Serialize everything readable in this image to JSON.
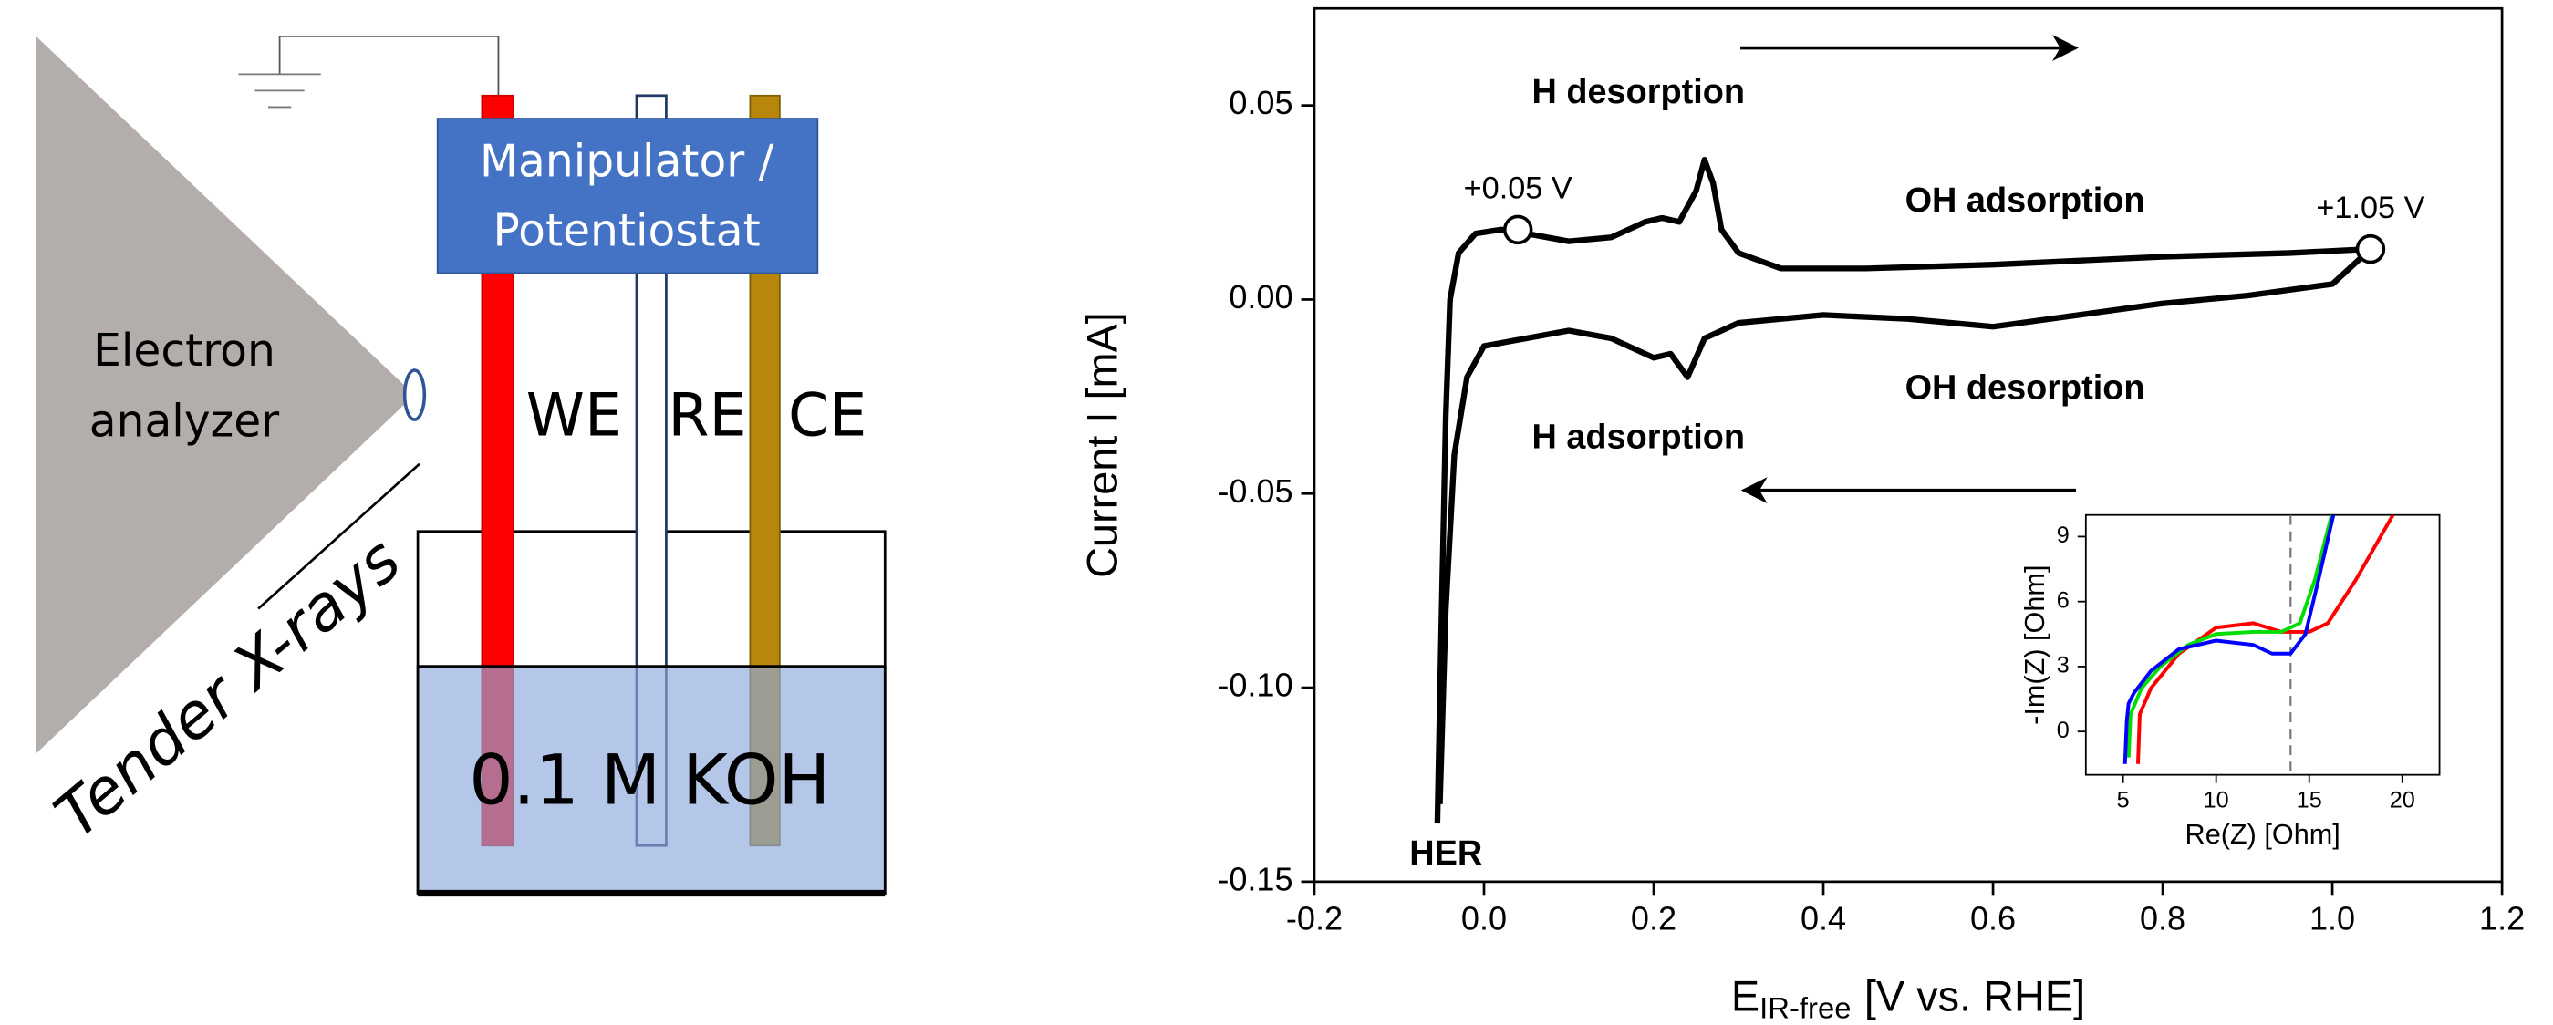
{
  "diagram": {
    "analyzer_label": [
      "Electron",
      "analyzer"
    ],
    "xray_label": "Tender X-rays",
    "box_label": [
      "Manipulator /",
      "Potentiostat"
    ],
    "electrodes": [
      "WE",
      "RE",
      "CE"
    ],
    "electrolyte": "0.1 M KOH"
  },
  "chart_data": [
    {
      "type": "line",
      "ylabel": "Current I [mA]",
      "xlabel": {
        "main": "E",
        "sub": "IR-free",
        "rest": "[V vs. RHE]"
      },
      "xlim": [
        -0.2,
        1.2
      ],
      "xticks": [
        -0.2,
        {
          "value": 0,
          "label": "0.0"
        },
        0.2,
        0.4,
        0.6,
        0.8,
        {
          "value": 1,
          "label": "1.0"
        },
        1.2
      ],
      "ylim": [
        -0.15,
        0.075
      ],
      "yticks": [
        -0.15,
        {
          "value": -0.1,
          "label": "-0.10"
        },
        -0.05,
        {
          "value": 0,
          "label": "0.00"
        },
        0.05
      ],
      "series": [
        {
          "color": "#000000",
          "x": [
            -0.055,
            -0.05,
            -0.045,
            -0.04,
            -0.03,
            -0.01,
            0.02,
            0.05,
            0.1,
            0.15,
            0.19,
            0.21,
            0.23,
            0.25,
            0.26,
            0.27,
            0.28,
            0.3,
            0.35,
            0.45,
            0.6,
            0.8,
            0.95,
            1.045
          ],
          "values": [
            -0.135,
            -0.08,
            -0.03,
            0.0,
            0.012,
            0.017,
            0.018,
            0.017,
            0.015,
            0.016,
            0.02,
            0.021,
            0.02,
            0.028,
            0.036,
            0.03,
            0.018,
            0.012,
            0.008,
            0.008,
            0.009,
            0.011,
            0.012,
            0.013
          ]
        },
        {
          "color": "#000000",
          "x": [
            1.045,
            1.0,
            0.9,
            0.8,
            0.6,
            0.5,
            0.4,
            0.3,
            0.26,
            0.24,
            0.22,
            0.2,
            0.15,
            0.1,
            0.05,
            0.0,
            -0.02,
            -0.035,
            -0.045,
            -0.052
          ],
          "values": [
            0.013,
            0.004,
            0.001,
            -0.001,
            -0.007,
            -0.005,
            -0.004,
            -0.006,
            -0.01,
            -0.02,
            -0.014,
            -0.015,
            -0.01,
            -0.008,
            -0.01,
            -0.012,
            -0.02,
            -0.04,
            -0.08,
            -0.13
          ]
        }
      ],
      "markers": [
        {
          "label": "+0.05 V",
          "x": 0.04,
          "y": 0.018
        },
        {
          "label": "+1.05 V",
          "x": 1.045,
          "y": 0.013
        }
      ],
      "annotations": [
        "H desorption",
        "OH adsorption",
        "OH desorption",
        "H adsorption",
        "HER"
      ]
    },
    {
      "type": "line",
      "xlabel": "Re(Z) [Ohm]",
      "ylabel": "-Im(Z) [Ohm]",
      "xlim": [
        3,
        22
      ],
      "xticks": [
        5,
        10,
        15,
        20
      ],
      "ylim": [
        -2,
        10
      ],
      "yticks": [
        0,
        3,
        6,
        9
      ],
      "vline": 14,
      "series": [
        {
          "color": "#ff0000",
          "x": [
            5.8,
            5.9,
            6.5,
            8,
            10,
            12,
            13.5,
            15,
            16,
            17.5,
            19.5
          ],
          "values": [
            -1.5,
            0.8,
            2,
            3.6,
            4.8,
            5,
            4.6,
            4.6,
            5,
            7,
            10
          ]
        },
        {
          "color": "#00dd00",
          "x": [
            5.3,
            5.4,
            6,
            7,
            8.5,
            10,
            12,
            13.5,
            14.5,
            15.3,
            16.2
          ],
          "values": [
            -1.2,
            0.8,
            2,
            3,
            4,
            4.5,
            4.6,
            4.6,
            5,
            7,
            10
          ]
        },
        {
          "color": "#0000ff",
          "x": [
            5.1,
            5.2,
            5.3,
            5.6,
            6.5,
            8,
            10,
            12,
            13,
            14,
            14.8,
            15.5,
            16.3
          ],
          "values": [
            -1.5,
            0.5,
            1.3,
            1.8,
            2.8,
            3.8,
            4.2,
            4,
            3.6,
            3.6,
            4.5,
            7,
            10
          ]
        }
      ]
    }
  ]
}
